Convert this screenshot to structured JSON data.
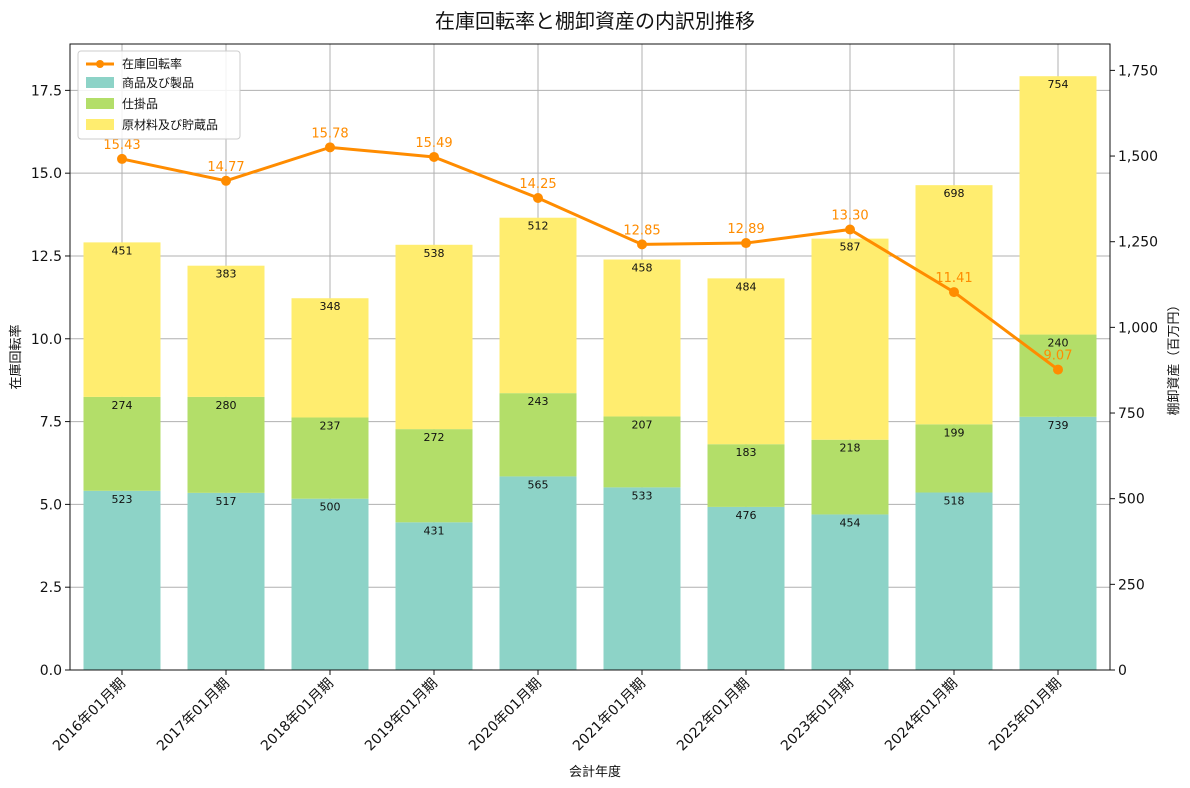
{
  "chart_data": {
    "type": "bar",
    "title": "在庫回転率と棚卸資産の内訳別推移",
    "xlabel": "会計年度",
    "ylabel_left": "在庫回転率",
    "ylabel_right": "棚卸資産（百万円）",
    "categories": [
      "2016年01月期",
      "2017年01月期",
      "2018年01月期",
      "2019年01月期",
      "2020年01月期",
      "2021年01月期",
      "2022年01月期",
      "2023年01月期",
      "2024年01月期",
      "2025年01月期"
    ],
    "series": [
      {
        "name": "商品及び製品",
        "color": "#8dd3c7",
        "values": [
          523,
          517,
          500,
          431,
          565,
          533,
          476,
          454,
          518,
          739
        ]
      },
      {
        "name": "仕掛品",
        "color": "#b3de69",
        "values": [
          274,
          280,
          237,
          272,
          243,
          207,
          183,
          218,
          199,
          240
        ]
      },
      {
        "name": "原材料及び貯蔵品",
        "color": "#ffed6f",
        "values": [
          451,
          383,
          348,
          538,
          512,
          458,
          484,
          587,
          698,
          754
        ]
      }
    ],
    "line": {
      "name": "在庫回転率",
      "color": "#ff8c00",
      "values": [
        15.43,
        14.77,
        15.78,
        15.49,
        14.25,
        12.85,
        12.89,
        13.3,
        11.41,
        9.07
      ]
    },
    "line_labels": [
      "15.43",
      "14.77",
      "15.78",
      "15.49",
      "14.25",
      "12.85",
      "12.89",
      "13.30",
      "11.41",
      "9.07"
    ],
    "ylim_left": [
      0,
      18.9
    ],
    "ylim_right": [
      0,
      1827
    ],
    "yticks_left": [
      "0.0",
      "2.5",
      "5.0",
      "7.5",
      "10.0",
      "12.5",
      "15.0",
      "17.5"
    ],
    "yticks_right": [
      "0",
      "250",
      "500",
      "750",
      "1,000",
      "1,250",
      "1,500",
      "1,750"
    ],
    "grid": true,
    "legend_position": "top-left"
  }
}
